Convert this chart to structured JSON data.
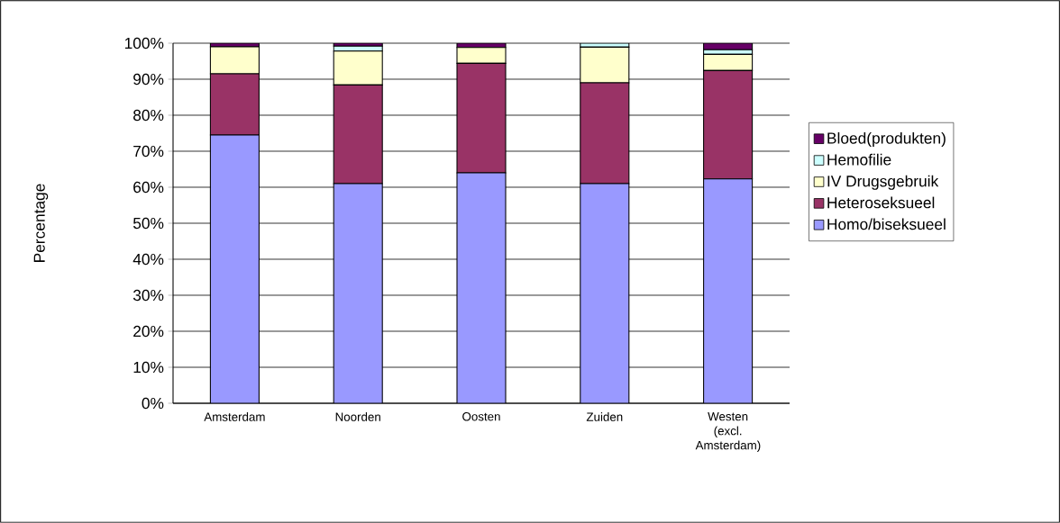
{
  "chart_data": {
    "type": "bar",
    "stacked": true,
    "ylabel": "Percentage",
    "categories": [
      "Amsterdam",
      "Noorden",
      "Oosten",
      "Zuiden",
      "Westen (excl. Amsterdam)"
    ],
    "series": [
      {
        "name": "Homo/biseksueel",
        "color": "#9999ff",
        "values": [
          74.5,
          61,
          64,
          61,
          62.3
        ]
      },
      {
        "name": "Heteroseksueel",
        "color": "#993366",
        "values": [
          17,
          27.4,
          30.4,
          28,
          30.1
        ]
      },
      {
        "name": "IV Drugsgebruik",
        "color": "#ffffcc",
        "values": [
          7.5,
          9.4,
          4.4,
          9.9,
          4.5
        ]
      },
      {
        "name": "Hemofilie",
        "color": "#ccffff",
        "values": [
          0,
          1.4,
          0,
          1.1,
          1.3
        ]
      },
      {
        "name": "Bloed(produkten)",
        "color": "#660066",
        "values": [
          1,
          0.8,
          1.2,
          0,
          1.8
        ]
      }
    ],
    "ylim": [
      0,
      100
    ],
    "yticks": [
      {
        "value": 0,
        "label": "0%"
      },
      {
        "value": 10,
        "label": "10%"
      },
      {
        "value": 20,
        "label": "20%"
      },
      {
        "value": 30,
        "label": "30%"
      },
      {
        "value": 40,
        "label": "40%"
      },
      {
        "value": 50,
        "label": "50%"
      },
      {
        "value": 60,
        "label": "60%"
      },
      {
        "value": 70,
        "label": "70%"
      },
      {
        "value": 80,
        "label": "80%"
      },
      {
        "value": 90,
        "label": "90%"
      },
      {
        "value": 100,
        "label": "100%"
      }
    ],
    "grid": "y",
    "legend": "right"
  }
}
